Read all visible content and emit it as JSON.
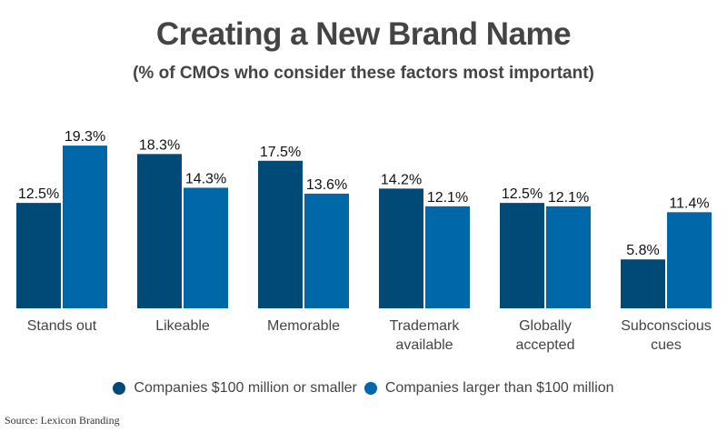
{
  "chart_data": {
    "type": "bar",
    "title": "Creating a New Brand Name",
    "subtitle": "(% of CMOs who consider these factors most important)",
    "xlabel": "",
    "ylabel": "",
    "ylim": [
      0,
      20
    ],
    "grid": false,
    "legend_position": "bottom",
    "categories": [
      [
        "Stands out"
      ],
      [
        "Likeable"
      ],
      [
        "Memorable"
      ],
      [
        "Trademark",
        "available"
      ],
      [
        "Globally",
        "accepted"
      ],
      [
        "Subconscious",
        "cues"
      ]
    ],
    "series": [
      {
        "name": "Companies $100 million or smaller",
        "color": "#004a77",
        "values": [
          12.5,
          18.3,
          17.5,
          14.2,
          12.5,
          5.8
        ],
        "labels": [
          "12.5%",
          "18.3%",
          "17.5%",
          "14.2%",
          "12.5%",
          "5.8%"
        ]
      },
      {
        "name": "Companies larger than $100 million",
        "color": "#0068a8",
        "values": [
          19.3,
          14.3,
          13.6,
          12.1,
          12.1,
          11.4
        ],
        "labels": [
          "19.3%",
          "14.3%",
          "13.6%",
          "12.1%",
          "12.1%",
          "11.4%"
        ]
      }
    ],
    "source": "Source: Lexicon Branding"
  }
}
